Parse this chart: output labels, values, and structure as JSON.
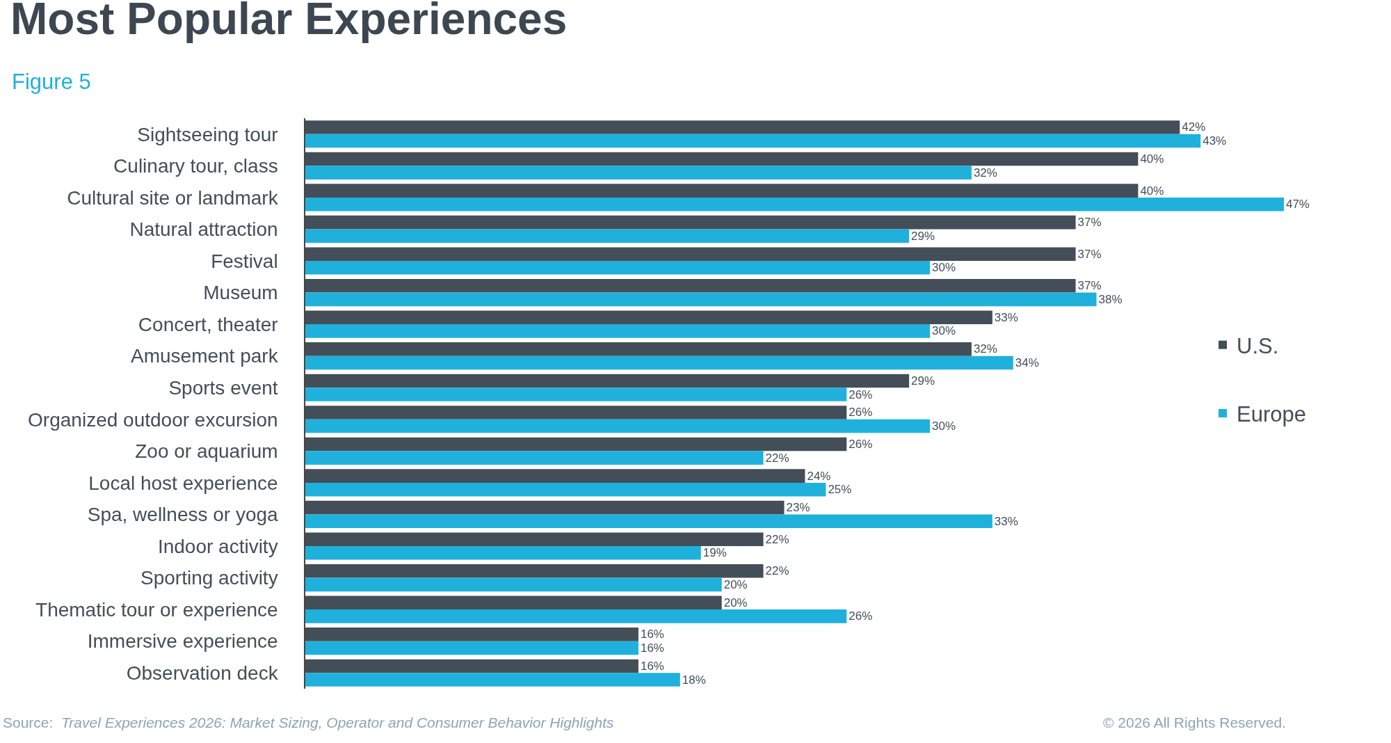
{
  "chart_data": {
    "type": "bar",
    "orientation": "horizontal",
    "title": "Most Popular Experiences",
    "subtitle": "Figure 5",
    "categories": [
      "Sightseeing tour",
      "Culinary tour, class",
      "Cultural site or landmark",
      "Natural attraction",
      "Festival",
      "Museum",
      "Concert, theater",
      "Amusement park",
      "Sports event",
      "Organized outdoor excursion",
      "Zoo or aquarium",
      "Local host experience",
      "Spa, wellness or yoga",
      "Indoor activity",
      "Sporting activity",
      "Thematic tour or experience",
      "Immersive experience",
      "Observation deck"
    ],
    "series": [
      {
        "name": "U.S.",
        "color": "#434e58",
        "values": [
          42,
          40,
          40,
          37,
          37,
          37,
          33,
          32,
          29,
          26,
          26,
          24,
          23,
          22,
          22,
          20,
          16,
          16
        ],
        "value_labels": [
          "42%",
          "40%",
          "40%",
          "37%",
          "37%",
          "37%",
          "33%",
          "32%",
          "29%",
          "26%",
          "26%",
          "24%",
          "23%",
          "22%",
          "22%",
          "20%",
          "16%",
          "16%"
        ]
      },
      {
        "name": "Europe",
        "color": "#1fb1db",
        "values": [
          43,
          32,
          47,
          29,
          30,
          38,
          30,
          34,
          26,
          30,
          22,
          25,
          33,
          19,
          20,
          26,
          16,
          18
        ],
        "value_labels": [
          "43%",
          "32%",
          "47%",
          "29%",
          "30%",
          "38%",
          "30%",
          "34%",
          "26%",
          "30%",
          "22%",
          "25%",
          "33%",
          "19%",
          "20%",
          "26%",
          "16%",
          "18%"
        ]
      }
    ],
    "tick_labels": "y",
    "legend": "right",
    "annotations": [
      "Source:  Travel Experiences 2026: Market Sizing, Operator and Consumer Behavior Highlights",
      "© 2026 All Rights Reserved."
    ]
  }
}
